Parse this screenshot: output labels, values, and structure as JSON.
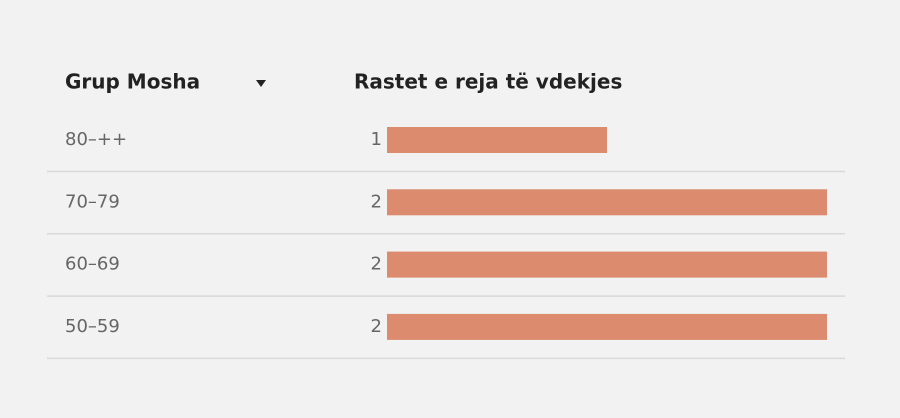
{
  "chart_data": {
    "type": "bar",
    "orientation": "horizontal",
    "category_header": "Grup Mosha",
    "value_header": "Rastet e reja të vdekjes",
    "categories": [
      "80–++",
      "70–79",
      "60–69",
      "50–59"
    ],
    "values": [
      1,
      2,
      2,
      2
    ],
    "color": "#dc8b6e"
  }
}
